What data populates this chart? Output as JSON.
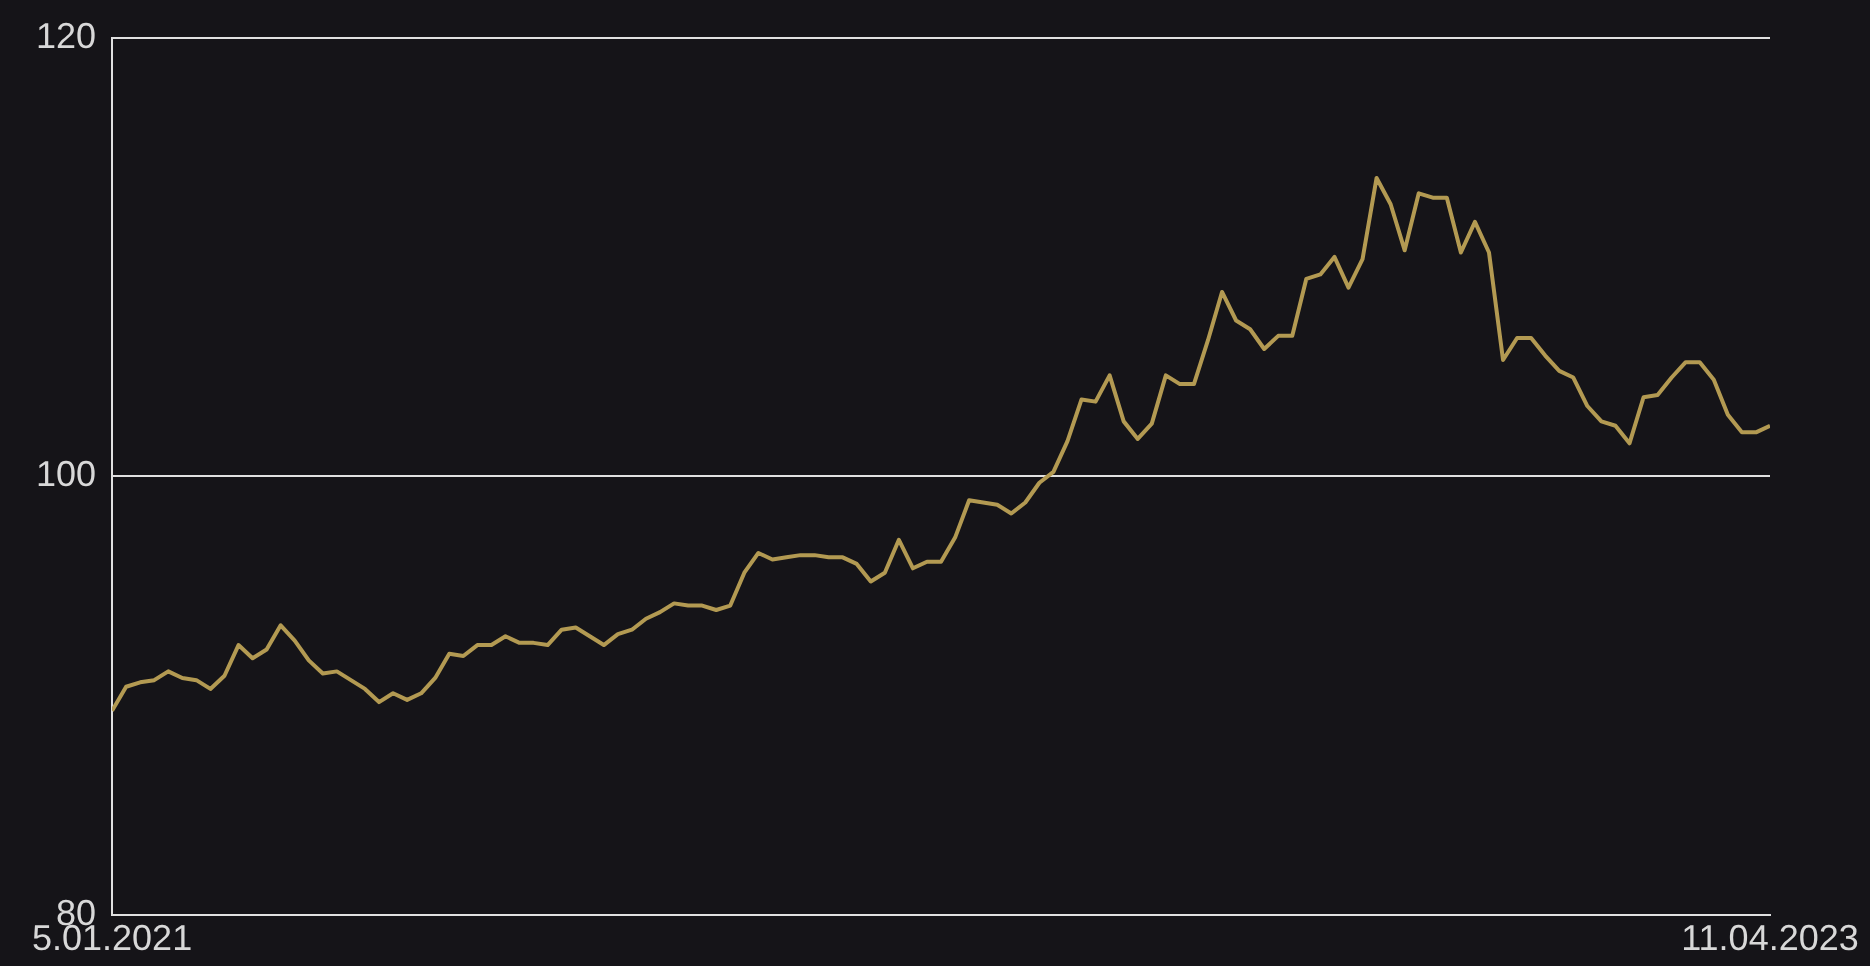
{
  "chart_data": {
    "type": "line",
    "x": [
      "2021-01-05",
      "2021-01-12",
      "2021-01-19",
      "2021-01-26",
      "2021-02-02",
      "2021-02-09",
      "2021-02-16",
      "2021-02-23",
      "2021-03-02",
      "2021-03-09",
      "2021-03-16",
      "2021-03-23",
      "2021-03-30",
      "2021-04-06",
      "2021-04-13",
      "2021-04-20",
      "2021-04-27",
      "2021-05-04",
      "2021-05-11",
      "2021-05-18",
      "2021-05-25",
      "2021-06-01",
      "2021-06-08",
      "2021-06-15",
      "2021-06-22",
      "2021-06-29",
      "2021-07-06",
      "2021-07-13",
      "2021-07-20",
      "2021-07-27",
      "2021-08-03",
      "2021-08-10",
      "2021-08-17",
      "2021-08-24",
      "2021-08-31",
      "2021-09-07",
      "2021-09-14",
      "2021-09-21",
      "2021-09-28",
      "2021-10-05",
      "2021-10-12",
      "2021-10-19",
      "2021-10-26",
      "2021-11-02",
      "2021-11-09",
      "2021-11-16",
      "2021-11-23",
      "2021-11-30",
      "2021-12-07",
      "2021-12-14",
      "2021-12-21",
      "2021-12-28",
      "2022-01-04",
      "2022-01-11",
      "2022-01-18",
      "2022-01-25",
      "2022-02-01",
      "2022-02-08",
      "2022-02-15",
      "2022-02-22",
      "2022-03-01",
      "2022-03-08",
      "2022-03-15",
      "2022-03-22",
      "2022-03-29",
      "2022-04-05",
      "2022-04-12",
      "2022-04-19",
      "2022-04-26",
      "2022-05-03",
      "2022-05-10",
      "2022-05-17",
      "2022-05-24",
      "2022-05-31",
      "2022-06-07",
      "2022-06-14",
      "2022-06-21",
      "2022-06-28",
      "2022-07-05",
      "2022-07-12",
      "2022-07-19",
      "2022-07-26",
      "2022-08-02",
      "2022-08-09",
      "2022-08-16",
      "2022-08-23",
      "2022-08-30",
      "2022-09-06",
      "2022-09-13",
      "2022-09-20",
      "2022-09-27",
      "2022-10-04",
      "2022-10-11",
      "2022-10-18",
      "2022-10-25",
      "2022-11-01",
      "2022-11-08",
      "2022-11-15",
      "2022-11-22",
      "2022-11-29",
      "2022-12-06",
      "2022-12-13",
      "2022-12-20",
      "2022-12-27",
      "2023-01-03",
      "2023-01-10",
      "2023-01-17",
      "2023-01-24",
      "2023-01-31",
      "2023-02-07",
      "2023-02-14",
      "2023-02-21",
      "2023-02-28",
      "2023-03-07",
      "2023-03-14",
      "2023-03-21",
      "2023-03-28",
      "2023-04-04",
      "2023-04-11"
    ],
    "series": [
      {
        "color": "#b39a52",
        "values": [
          89.3,
          90.4,
          90.6,
          90.7,
          91.1,
          90.8,
          90.7,
          90.3,
          90.9,
          92.3,
          91.7,
          92.1,
          93.2,
          92.5,
          91.6,
          91.0,
          91.1,
          90.7,
          90.3,
          89.7,
          90.1,
          89.8,
          90.1,
          90.8,
          91.9,
          91.8,
          92.3,
          92.3,
          92.7,
          92.4,
          92.4,
          92.3,
          93.0,
          93.1,
          92.7,
          92.3,
          92.8,
          93.0,
          93.5,
          93.8,
          94.2,
          94.1,
          94.1,
          93.9,
          94.1,
          95.6,
          96.5,
          96.2,
          96.3,
          96.4,
          96.4,
          96.3,
          96.3,
          96.0,
          95.2,
          95.6,
          97.1,
          95.8,
          96.1,
          96.1,
          97.2,
          98.9,
          98.8,
          98.7,
          98.3,
          98.8,
          99.7,
          100.2,
          101.6,
          103.5,
          103.4,
          104.6,
          102.5,
          101.7,
          102.4,
          104.6,
          104.2,
          104.2,
          106.2,
          108.4,
          107.1,
          106.7,
          105.8,
          106.4,
          106.4,
          109.0,
          109.2,
          110.0,
          108.6,
          109.9,
          113.6,
          112.4,
          110.3,
          112.9,
          112.7,
          112.7,
          110.2,
          111.6,
          110.2,
          105.3,
          106.3,
          106.3,
          105.5,
          104.8,
          104.5,
          103.2,
          102.5,
          102.3,
          101.5,
          103.6,
          103.7,
          104.5,
          105.2,
          105.2,
          104.4,
          102.8,
          102.0,
          102.0,
          102.3
        ]
      }
    ],
    "xlim": [
      "2021-01-05",
      "2023-04-11"
    ],
    "xticks": [
      {
        "value": "2021-01-05",
        "label": "5.01.2021"
      },
      {
        "value": "2023-04-11",
        "label": "11.04.2023"
      }
    ],
    "ylim": [
      80,
      120
    ],
    "yticks": [
      80,
      100,
      120
    ],
    "grid": "y",
    "marker": "none",
    "line_style": "solid",
    "legend": false
  }
}
